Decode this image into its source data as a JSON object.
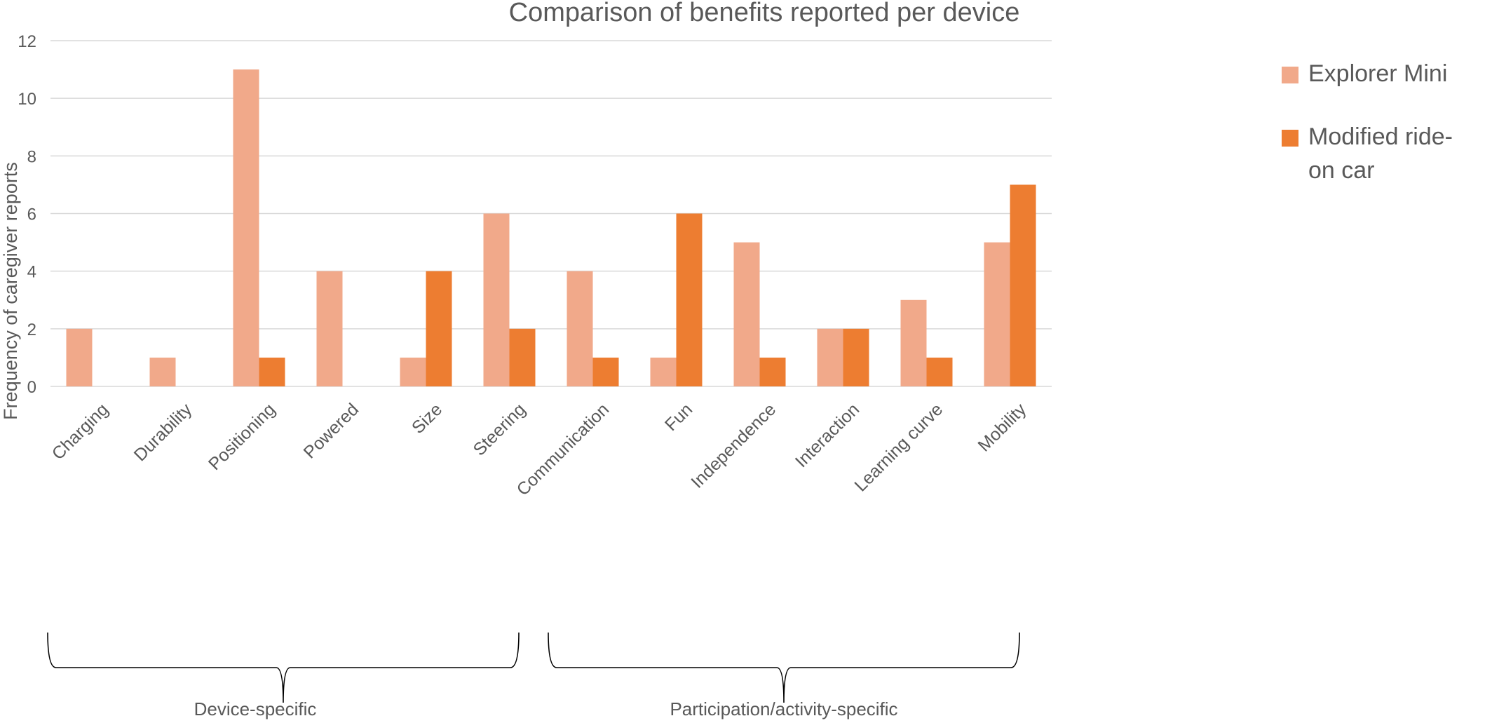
{
  "chart_data": {
    "type": "bar",
    "title": "Comparison of benefits reported per device",
    "xlabel": "",
    "ylabel": "Frequency of caregiver reports",
    "ylim": [
      0,
      12
    ],
    "yticks": [
      0,
      2,
      4,
      6,
      8,
      10,
      12
    ],
    "grid": true,
    "legend_position": "right",
    "categories": [
      "Charging",
      "Durability",
      "Positioning",
      "Powered",
      "Size",
      "Steering",
      "Communication",
      "Fun",
      "Independence",
      "Interaction",
      "Learning curve",
      "Mobility"
    ],
    "series": [
      {
        "name": "Explorer Mini",
        "color": "#f1a98a",
        "values": [
          2,
          1,
          11,
          4,
          1,
          6,
          4,
          1,
          5,
          2,
          3,
          5
        ]
      },
      {
        "name": "Modified ride-on car",
        "color": "#ed7d31",
        "values": [
          0,
          0,
          1,
          0,
          4,
          2,
          1,
          6,
          1,
          2,
          1,
          7
        ]
      }
    ],
    "groups": [
      {
        "label": "Device-specific",
        "first_category": 0,
        "last_category": 5
      },
      {
        "label": "Participation/activity-specific",
        "first_category": 6,
        "last_category": 11
      }
    ],
    "colors": {
      "text": "#595959",
      "grid": "#d9d9d9",
      "brace": "#000000"
    }
  }
}
